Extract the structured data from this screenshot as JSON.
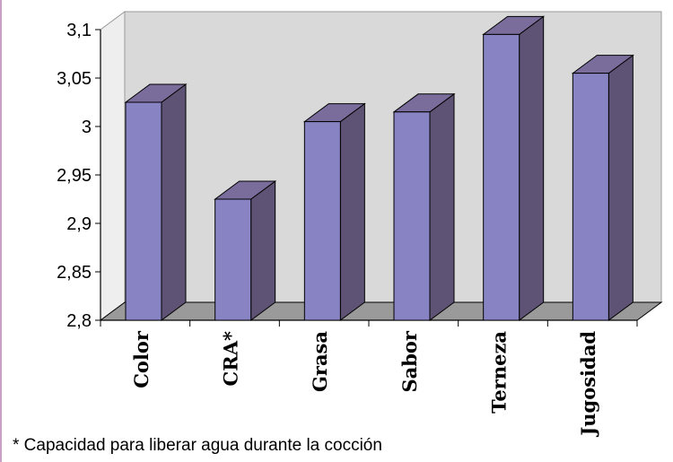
{
  "chart_data": {
    "type": "bar",
    "categories": [
      "Color",
      "CRA*",
      "Grasa",
      "Sabor",
      "Terneza",
      "Jugosidad"
    ],
    "values": [
      3.025,
      2.925,
      3.005,
      3.015,
      3.095,
      3.055
    ],
    "ylim": [
      2.8,
      3.1
    ],
    "yticks": [
      "2,8",
      "2,85",
      "2,9",
      "2,95",
      "3",
      "3,05",
      "3,1"
    ],
    "title": "",
    "xlabel": "",
    "ylabel": "",
    "grid": false,
    "style": "3d-columns",
    "colors": {
      "bar_front": "#8884c3",
      "bar_side": "#5e5374",
      "bar_top": "#7a6d9c",
      "wall": "#d9d9d9",
      "floor": "#9a9a9a"
    }
  },
  "footnote": "* Capacidad para liberar agua durante la cocción"
}
